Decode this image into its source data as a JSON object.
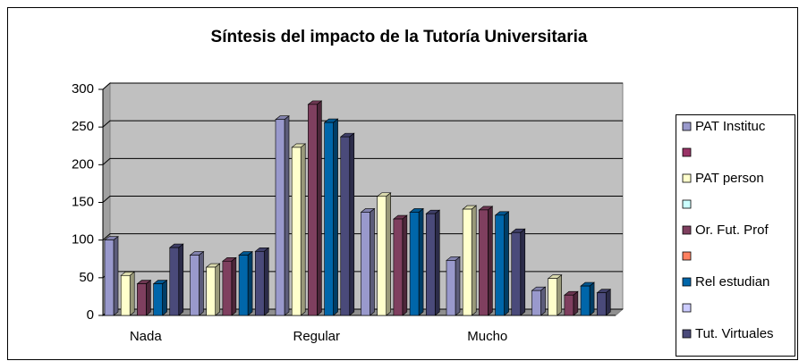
{
  "chart_data": {
    "type": "bar",
    "title": "Síntesis del impacto de la Tutoría Universitaria",
    "categories": [
      "Nada",
      null,
      "Regular",
      null,
      "Mucho",
      null
    ],
    "series": [
      {
        "name": "PAT Instituc",
        "color": "#9999cc",
        "values": [
          100,
          80,
          260,
          137,
          73,
          33
        ]
      },
      {
        "name": null,
        "color": "#993366",
        "values": [
          null,
          null,
          null,
          null,
          null,
          null
        ]
      },
      {
        "name": "PAT person",
        "color": "#ffffcc",
        "values": [
          53,
          64,
          223,
          158,
          141,
          49
        ]
      },
      {
        "name": null,
        "color": "#ccffff",
        "values": [
          null,
          null,
          null,
          null,
          null,
          null
        ]
      },
      {
        "name": "Or. Fut. Prof",
        "color": "#7f3f5f",
        "values": [
          42,
          72,
          280,
          128,
          140,
          27
        ]
      },
      {
        "name": null,
        "color": "#ff8060",
        "values": [
          null,
          null,
          null,
          null,
          null,
          null
        ]
      },
      {
        "name": "Rel estudian",
        "color": "#0066aa",
        "values": [
          42,
          80,
          256,
          137,
          133,
          39
        ]
      },
      {
        "name": null,
        "color": "#ccccff",
        "values": [
          null,
          null,
          null,
          null,
          null,
          null
        ]
      },
      {
        "name": "Tut. Virtuales",
        "color": "#4a4a7a",
        "values": [
          90,
          85,
          237,
          135,
          110,
          30
        ]
      }
    ],
    "ylim": [
      0,
      300
    ],
    "yticks": [
      0,
      50,
      100,
      150,
      200,
      250,
      300
    ],
    "grid": true,
    "legend": "right"
  }
}
